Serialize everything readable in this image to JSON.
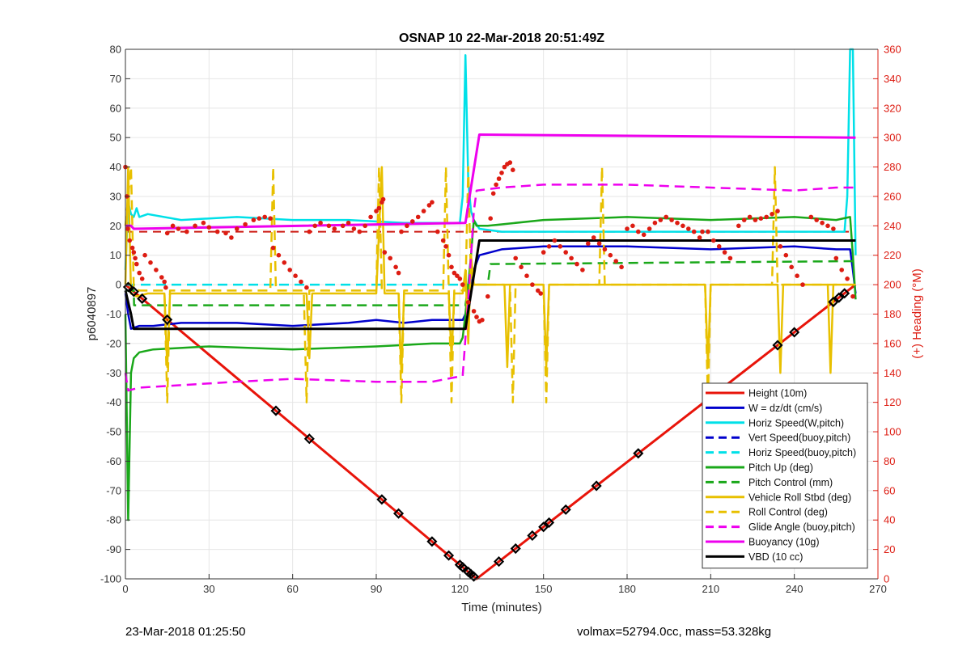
{
  "chart_data": {
    "type": "line",
    "title": "OSNAP 10 22-Mar-2018 20:51:49Z",
    "xlabel": "Time (minutes)",
    "ylabel": "p6040897",
    "y2label": "(+) Heading (°M)",
    "xlim": [
      0,
      270
    ],
    "ylim": [
      -100,
      80
    ],
    "y2lim": [
      0,
      360
    ],
    "xticks": [
      0,
      30,
      60,
      90,
      120,
      150,
      180,
      210,
      240,
      270
    ],
    "yticks": [
      -100,
      -90,
      -80,
      -70,
      -60,
      -50,
      -40,
      -30,
      -20,
      -10,
      0,
      10,
      20,
      30,
      40,
      50,
      60,
      70,
      80
    ],
    "y2ticks": [
      0,
      20,
      40,
      60,
      80,
      100,
      120,
      140,
      160,
      180,
      200,
      220,
      240,
      260,
      280,
      300,
      320,
      340,
      360
    ],
    "grid": true,
    "legend_position": "lower-right",
    "series": [
      {
        "name": "Height (10m)",
        "color": "#e8140a",
        "style": "solid",
        "width": 3,
        "x": [
          0,
          126,
          262
        ],
        "y": [
          0,
          -100,
          0
        ],
        "markers_x": [
          1,
          3,
          6,
          15,
          54,
          66,
          92,
          98,
          110,
          116,
          120,
          121,
          123,
          124,
          125,
          134,
          140,
          146,
          150,
          152,
          158,
          169,
          184,
          209,
          211,
          234,
          240,
          254,
          256,
          258
        ]
      },
      {
        "name": "W = dz/dt (cm/s)",
        "color": "#0000cc",
        "style": "solid",
        "width": 2.5,
        "x": [
          0,
          1,
          2,
          5,
          10,
          20,
          40,
          60,
          80,
          90,
          100,
          110,
          118,
          121,
          123,
          125,
          127,
          135,
          150,
          180,
          210,
          240,
          255,
          260,
          261,
          262
        ],
        "y": [
          -3,
          -10,
          -15,
          -14,
          -14,
          -13,
          -13,
          -14,
          -13,
          -12,
          -13,
          -12,
          -12,
          -12,
          -8,
          5,
          10,
          12,
          13,
          13,
          12,
          13,
          12,
          12,
          5,
          -3
        ]
      },
      {
        "name": "Horiz Speed(W,pitch)",
        "color": "#00e0e8",
        "style": "solid",
        "width": 2.5,
        "x": [
          0,
          1,
          2,
          3,
          4,
          5,
          8,
          20,
          40,
          60,
          80,
          100,
          120,
          121,
          122,
          123,
          124,
          125,
          127,
          135,
          150,
          180,
          210,
          240,
          255,
          258,
          259,
          260,
          261,
          262
        ],
        "y": [
          5,
          28,
          24,
          23,
          26,
          23,
          24,
          22,
          23,
          22,
          22,
          21,
          21,
          30,
          78,
          35,
          25,
          22,
          19,
          18,
          18,
          18,
          18,
          18,
          18,
          18,
          30,
          80,
          80,
          10
        ]
      },
      {
        "name": "Vert Speed(buoy,pitch)",
        "color": "#0000cc",
        "style": "dashed",
        "width": 2.5,
        "x": [],
        "y": []
      },
      {
        "name": "Horiz Speed(buoy,pitch)",
        "color": "#00e0e8",
        "style": "dashed",
        "width": 2.5,
        "x": [
          0,
          123
        ],
        "y": [
          0,
          0
        ]
      },
      {
        "name": "Pitch Up (deg)",
        "color": "#1aa81a",
        "style": "solid",
        "width": 2.5,
        "x": [
          0,
          1,
          2,
          3,
          4,
          5,
          10,
          30,
          60,
          90,
          110,
          120,
          121,
          122,
          123,
          124,
          125,
          126,
          130,
          150,
          180,
          210,
          240,
          255,
          260,
          261,
          262
        ],
        "y": [
          -10,
          -80,
          -30,
          -25,
          -24,
          -23,
          -22,
          -21,
          -22,
          -21,
          -20,
          -20,
          -18,
          -10,
          0,
          10,
          22,
          20,
          20,
          22,
          23,
          22,
          23,
          22,
          23,
          10,
          -5
        ]
      },
      {
        "name": "Pitch Control (mm)",
        "color": "#1aa81a",
        "style": "dashed",
        "width": 2.5,
        "x": [
          0,
          3,
          3.1,
          122,
          123,
          130,
          131,
          262
        ],
        "y": [
          -2,
          -2,
          -7,
          -7,
          0,
          0,
          7,
          8
        ]
      },
      {
        "name": "Vehicle Roll Stbd (deg)",
        "color": "#e8c000",
        "style": "solid",
        "width": 2.5,
        "x": [
          0,
          1,
          2,
          4,
          8,
          14,
          15,
          16,
          30,
          60,
          65,
          66,
          67,
          90,
          92,
          93,
          98,
          99,
          100,
          110,
          116,
          117,
          118,
          121,
          122,
          123,
          124,
          125,
          130,
          136,
          137,
          138,
          150,
          151,
          152,
          180,
          208,
          209,
          210,
          234,
          235,
          236,
          250,
          252,
          253,
          254,
          260,
          262
        ],
        "y": [
          0,
          40,
          -3,
          -4,
          -3,
          -3,
          -28,
          -3,
          -3,
          -3,
          -3,
          -25,
          -3,
          -3,
          40,
          -3,
          -3,
          -30,
          -3,
          -3,
          -3,
          -25,
          -3,
          -3,
          5,
          -20,
          10,
          0,
          0,
          0,
          -28,
          0,
          0,
          -28,
          0,
          0,
          0,
          -28,
          0,
          0,
          -30,
          0,
          0,
          0,
          -30,
          0,
          0,
          0
        ]
      },
      {
        "name": "Roll Control (deg)",
        "color": "#e8c000",
        "style": "dashed",
        "width": 2.5,
        "x": [
          0,
          2,
          3,
          5,
          14,
          15,
          16,
          52,
          53,
          54,
          64,
          65,
          66,
          67,
          90,
          91,
          92,
          98,
          99,
          100,
          114,
          115,
          116,
          117,
          118,
          122,
          123,
          124,
          138,
          139,
          140,
          150,
          151,
          152,
          170,
          171,
          172,
          208,
          209,
          210,
          232,
          233,
          234,
          255,
          262
        ],
        "y": [
          20,
          40,
          -1,
          -2,
          -2,
          -40,
          -2,
          -2,
          40,
          -2,
          -2,
          -40,
          -2,
          -2,
          -2,
          40,
          -2,
          -2,
          -40,
          -2,
          -2,
          40,
          -2,
          -40,
          -2,
          -2,
          40,
          0,
          0,
          -40,
          0,
          0,
          -40,
          0,
          0,
          40,
          0,
          0,
          -40,
          0,
          0,
          40,
          0,
          0,
          0
        ]
      },
      {
        "name": "Glide Angle (buoy,pitch)",
        "color": "#ee00ee",
        "style": "dashed",
        "width": 2.5,
        "x": [
          0,
          1,
          5,
          40,
          60,
          90,
          110,
          121,
          123,
          125,
          126,
          135,
          150,
          180,
          210,
          240,
          255,
          260,
          262
        ],
        "y": [
          -30,
          -36,
          -35,
          -33,
          -32,
          -33,
          -33,
          -31,
          -5,
          25,
          32,
          33,
          34,
          34,
          33,
          32,
          33,
          33,
          33
        ]
      },
      {
        "name": "Buoyancy (10g)",
        "color": "#ee00ee",
        "style": "solid",
        "width": 3,
        "x": [
          0,
          2,
          3,
          122,
          127,
          262
        ],
        "y": [
          20,
          20,
          19,
          21,
          51,
          50
        ]
      },
      {
        "name": "VBD (10 cc)",
        "color": "#000000",
        "style": "solid",
        "width": 3,
        "x": [
          0,
          2,
          3,
          122,
          127,
          262
        ],
        "y": [
          -2,
          -10,
          -15,
          -15,
          15,
          15
        ]
      }
    ],
    "heading": {
      "name": "Heading",
      "color": "#dd1c12",
      "reference_heading": 236,
      "points": [
        [
          0,
          280
        ],
        [
          0.5,
          260
        ],
        [
          0.8,
          238
        ],
        [
          1.5,
          230
        ],
        [
          2.5,
          225
        ],
        [
          3,
          222
        ],
        [
          3.5,
          218
        ],
        [
          4,
          214
        ],
        [
          5,
          208
        ],
        [
          6,
          204
        ],
        [
          7,
          220
        ],
        [
          9,
          215
        ],
        [
          11,
          210
        ],
        [
          13,
          205
        ],
        [
          14,
          202
        ],
        [
          14.5,
          198
        ],
        [
          15,
          235
        ],
        [
          17,
          240
        ],
        [
          19,
          238
        ],
        [
          22,
          236
        ],
        [
          25,
          240
        ],
        [
          28,
          242
        ],
        [
          30,
          239
        ],
        [
          33,
          236
        ],
        [
          36,
          235
        ],
        [
          38,
          232
        ],
        [
          40,
          238
        ],
        [
          43,
          241
        ],
        [
          46,
          244
        ],
        [
          48,
          245
        ],
        [
          50,
          246
        ],
        [
          52,
          245
        ],
        [
          53,
          225
        ],
        [
          55,
          220
        ],
        [
          57,
          215
        ],
        [
          59,
          210
        ],
        [
          61,
          206
        ],
        [
          63,
          202
        ],
        [
          65,
          198
        ],
        [
          66,
          236
        ],
        [
          68,
          240
        ],
        [
          70,
          242
        ],
        [
          73,
          240
        ],
        [
          75,
          238
        ],
        [
          78,
          240
        ],
        [
          80,
          242
        ],
        [
          82,
          238
        ],
        [
          84,
          236
        ],
        [
          86,
          240
        ],
        [
          88,
          246
        ],
        [
          90,
          250
        ],
        [
          91,
          252
        ],
        [
          92,
          256
        ],
        [
          92.5,
          258
        ],
        [
          93,
          222
        ],
        [
          95,
          218
        ],
        [
          97,
          212
        ],
        [
          98,
          208
        ],
        [
          99,
          236
        ],
        [
          101,
          240
        ],
        [
          103,
          243
        ],
        [
          105,
          246
        ],
        [
          107,
          250
        ],
        [
          109,
          254
        ],
        [
          110,
          256
        ],
        [
          112,
          236
        ],
        [
          114,
          230
        ],
        [
          115,
          226
        ],
        [
          116,
          220
        ],
        [
          117,
          212
        ],
        [
          118,
          208
        ],
        [
          119,
          206
        ],
        [
          120,
          204
        ],
        [
          121,
          200
        ],
        [
          123,
          188
        ],
        [
          125,
          182
        ],
        [
          126,
          178
        ],
        [
          127,
          175
        ],
        [
          128,
          176
        ],
        [
          130,
          192
        ],
        [
          131,
          245
        ],
        [
          132,
          262
        ],
        [
          133,
          268
        ],
        [
          134,
          272
        ],
        [
          135,
          276
        ],
        [
          136,
          280
        ],
        [
          137,
          282
        ],
        [
          138,
          283
        ],
        [
          139,
          278
        ],
        [
          140,
          218
        ],
        [
          142,
          212
        ],
        [
          144,
          206
        ],
        [
          146,
          200
        ],
        [
          148,
          196
        ],
        [
          149,
          194
        ],
        [
          150,
          222
        ],
        [
          152,
          226
        ],
        [
          154,
          230
        ],
        [
          156,
          226
        ],
        [
          158,
          222
        ],
        [
          160,
          218
        ],
        [
          162,
          214
        ],
        [
          164,
          210
        ],
        [
          166,
          228
        ],
        [
          168,
          232
        ],
        [
          170,
          228
        ],
        [
          172,
          224
        ],
        [
          174,
          220
        ],
        [
          176,
          216
        ],
        [
          178,
          212
        ],
        [
          180,
          238
        ],
        [
          182,
          240
        ],
        [
          184,
          236
        ],
        [
          186,
          234
        ],
        [
          188,
          238
        ],
        [
          190,
          242
        ],
        [
          192,
          244
        ],
        [
          194,
          246
        ],
        [
          196,
          244
        ],
        [
          198,
          242
        ],
        [
          200,
          240
        ],
        [
          202,
          238
        ],
        [
          204,
          236
        ],
        [
          206,
          232
        ],
        [
          207,
          236
        ],
        [
          209,
          236
        ],
        [
          211,
          230
        ],
        [
          213,
          226
        ],
        [
          215,
          222
        ],
        [
          217,
          218
        ],
        [
          220,
          240
        ],
        [
          222,
          244
        ],
        [
          224,
          246
        ],
        [
          226,
          244
        ],
        [
          228,
          245
        ],
        [
          230,
          246
        ],
        [
          232,
          248
        ],
        [
          234,
          250
        ],
        [
          235,
          226
        ],
        [
          237,
          220
        ],
        [
          239,
          212
        ],
        [
          241,
          206
        ],
        [
          243,
          200
        ],
        [
          246,
          246
        ],
        [
          248,
          244
        ],
        [
          250,
          242
        ],
        [
          252,
          240
        ],
        [
          254,
          238
        ],
        [
          255,
          218
        ],
        [
          257,
          210
        ],
        [
          259,
          204
        ],
        [
          261,
          192
        ]
      ]
    }
  },
  "footer": {
    "timestamp": "23-Mar-2018 01:25:50",
    "stats": "volmax=52794.0cc, mass=53.328kg"
  }
}
